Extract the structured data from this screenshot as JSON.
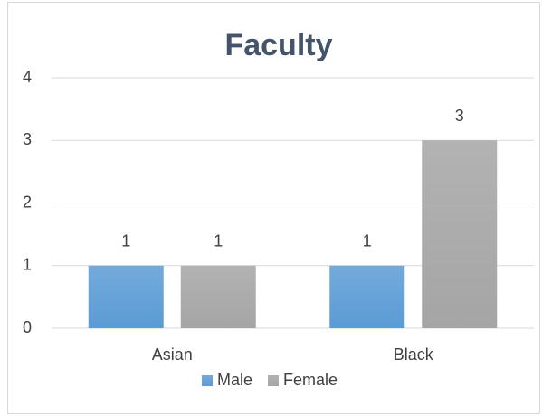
{
  "chart_data": {
    "type": "bar",
    "title": "Faculty",
    "categories": [
      "Asian",
      "Black"
    ],
    "series": [
      {
        "name": "Male",
        "color": "#5b9bd5",
        "values": [
          1,
          1
        ]
      },
      {
        "name": "Female",
        "color": "#a5a5a5",
        "values": [
          1,
          3
        ]
      }
    ],
    "ylim": [
      0,
      4
    ],
    "yticks": [
      0,
      1,
      2,
      3,
      4
    ],
    "grid": true,
    "legend": "bottom"
  }
}
